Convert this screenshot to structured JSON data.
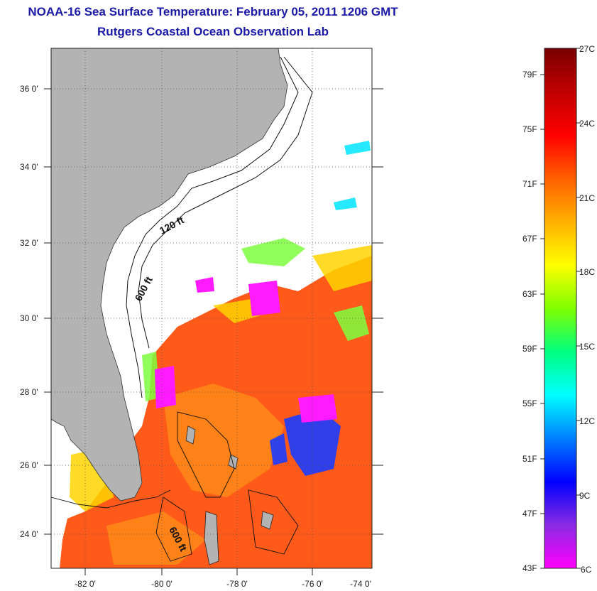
{
  "title": {
    "line1": "NOAA-16 Sea Surface Temperature:  February 05, 2011 1206 GMT",
    "line2": "Rutgers Coastal Ocean Observation Lab"
  },
  "map": {
    "lat_labels": [
      "36 0'",
      "34 0'",
      "32 0'",
      "30 0'",
      "28 0'",
      "26 0'",
      "24 0'"
    ],
    "lon_labels": [
      "-82 0'",
      "-80 0'",
      "-78 0'",
      "-76 0'",
      "-74 0'"
    ],
    "contour_labels": [
      "120 ft",
      "600 ft",
      "600 ft"
    ],
    "colors": {
      "land": "#b3b3b3",
      "cloud": "#ffffff",
      "warm": "#ff5a1a",
      "cool": "#ff00ff"
    }
  },
  "colorbar": {
    "fahrenheit": [
      "79F",
      "75F",
      "71F",
      "67F",
      "63F",
      "59F",
      "55F",
      "51F",
      "47F",
      "43F"
    ],
    "celsius": [
      "27C",
      "24C",
      "21C",
      "18C",
      "15C",
      "12C",
      "9C",
      "6C"
    ],
    "stops": [
      "#ff00ff",
      "#8a2be2",
      "#0000ff",
      "#0080ff",
      "#00ffff",
      "#00ff80",
      "#80ff00",
      "#ffff00",
      "#ffb000",
      "#ff6000",
      "#ff0000",
      "#c00000",
      "#7a0000"
    ]
  }
}
